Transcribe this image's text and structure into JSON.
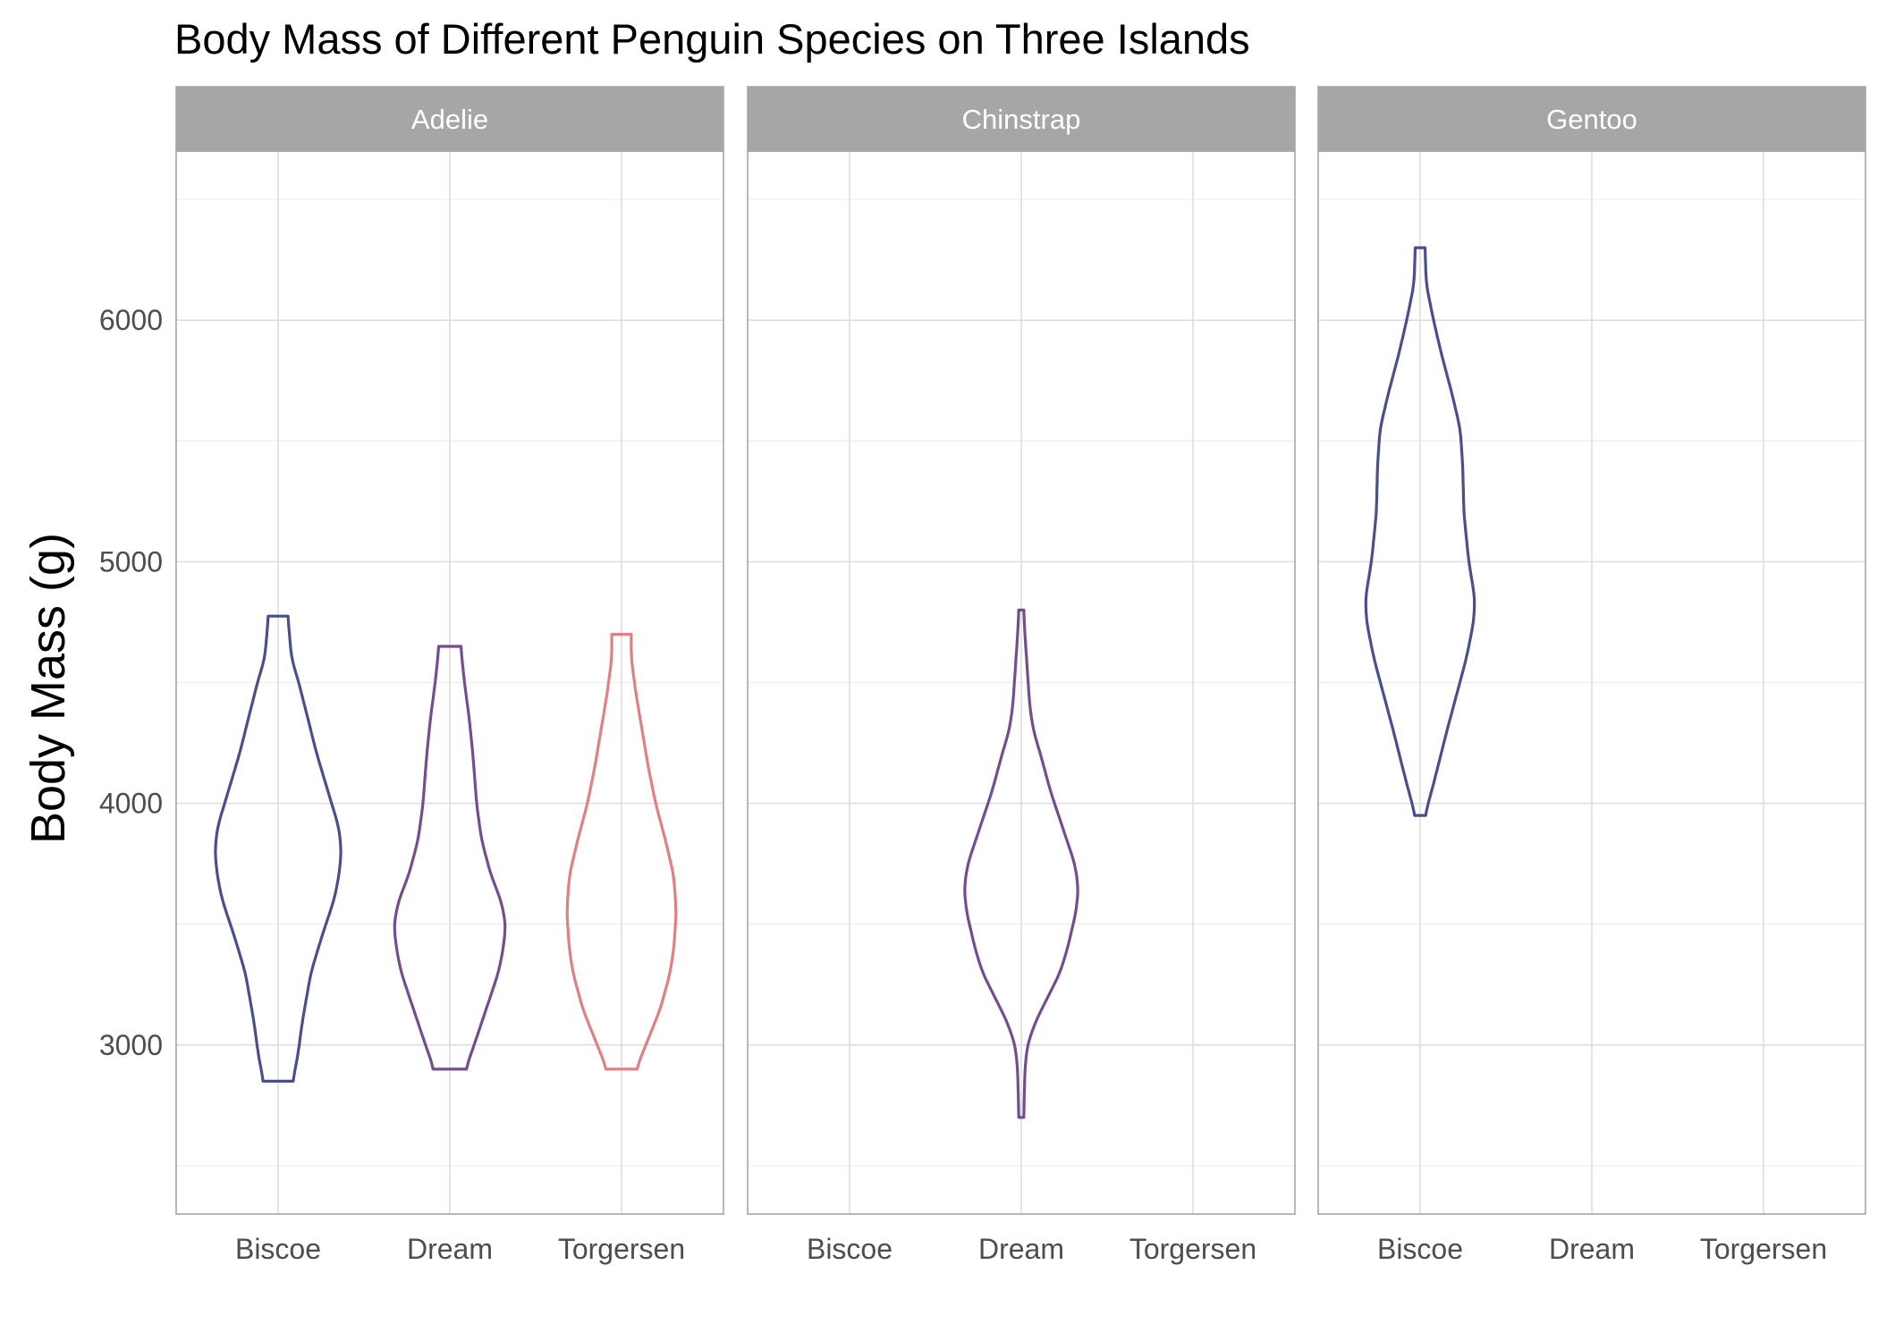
{
  "chart_data": {
    "type": "violin",
    "title": "Body Mass of Different Penguin Species on Three Islands",
    "ylabel": "Body Mass (g)",
    "xlabel": "",
    "ylim": [
      2300,
      6700
    ],
    "yticks": [
      3000,
      4000,
      5000,
      6000
    ],
    "yminor": [
      2500,
      3500,
      4500,
      5500,
      6500
    ],
    "grid": true,
    "legend": "none",
    "categories": [
      "Biscoe",
      "Dream",
      "Torgersen"
    ],
    "facets": [
      {
        "label": "Adelie",
        "violins": [
          {
            "island": "Biscoe",
            "color": "#4a4f8a",
            "min": 2850,
            "max": 4775,
            "profile": [
              [
                2850,
                0.12
              ],
              [
                2950,
                0.16
              ],
              [
                3100,
                0.2
              ],
              [
                3300,
                0.27
              ],
              [
                3450,
                0.36
              ],
              [
                3600,
                0.46
              ],
              [
                3700,
                0.5
              ],
              [
                3800,
                0.52
              ],
              [
                3900,
                0.5
              ],
              [
                4000,
                0.44
              ],
              [
                4200,
                0.32
              ],
              [
                4400,
                0.22
              ],
              [
                4500,
                0.17
              ],
              [
                4600,
                0.11
              ],
              [
                4775,
                0.08
              ]
            ]
          },
          {
            "island": "Dream",
            "color": "#744d8d",
            "min": 2900,
            "max": 4650,
            "profile": [
              [
                2900,
                0.13
              ],
              [
                3000,
                0.2
              ],
              [
                3150,
                0.3
              ],
              [
                3300,
                0.4
              ],
              [
                3400,
                0.44
              ],
              [
                3500,
                0.46
              ],
              [
                3600,
                0.42
              ],
              [
                3700,
                0.34
              ],
              [
                3850,
                0.26
              ],
              [
                4000,
                0.22
              ],
              [
                4200,
                0.19
              ],
              [
                4350,
                0.16
              ],
              [
                4500,
                0.12
              ],
              [
                4650,
                0.09
              ]
            ]
          },
          {
            "island": "Torgersen",
            "color": "#de8084",
            "min": 2900,
            "max": 4700,
            "profile": [
              [
                2900,
                0.12
              ],
              [
                3000,
                0.2
              ],
              [
                3150,
                0.32
              ],
              [
                3300,
                0.4
              ],
              [
                3400,
                0.43
              ],
              [
                3550,
                0.45
              ],
              [
                3700,
                0.43
              ],
              [
                3850,
                0.36
              ],
              [
                4000,
                0.28
              ],
              [
                4150,
                0.22
              ],
              [
                4300,
                0.17
              ],
              [
                4450,
                0.12
              ],
              [
                4600,
                0.08
              ],
              [
                4700,
                0.08
              ]
            ]
          }
        ]
      },
      {
        "label": "Chinstrap",
        "violins": [
          {
            "island": "Dream",
            "color": "#744d8d",
            "min": 2700,
            "max": 4800,
            "profile": [
              [
                2700,
                0.02
              ],
              [
                2900,
                0.03
              ],
              [
                3000,
                0.05
              ],
              [
                3100,
                0.12
              ],
              [
                3200,
                0.22
              ],
              [
                3300,
                0.32
              ],
              [
                3400,
                0.38
              ],
              [
                3550,
                0.45
              ],
              [
                3650,
                0.47
              ],
              [
                3750,
                0.44
              ],
              [
                3900,
                0.34
              ],
              [
                4050,
                0.24
              ],
              [
                4200,
                0.16
              ],
              [
                4300,
                0.1
              ],
              [
                4400,
                0.07
              ],
              [
                4550,
                0.05
              ],
              [
                4700,
                0.03
              ],
              [
                4800,
                0.02
              ]
            ]
          }
        ]
      },
      {
        "label": "Gentoo",
        "violins": [
          {
            "island": "Biscoe",
            "color": "#4a4f8a",
            "min": 3950,
            "max": 6300,
            "profile": [
              [
                3950,
                0.04
              ],
              [
                4100,
                0.12
              ],
              [
                4300,
                0.22
              ],
              [
                4450,
                0.3
              ],
              [
                4600,
                0.38
              ],
              [
                4750,
                0.44
              ],
              [
                4850,
                0.45
              ],
              [
                5000,
                0.4
              ],
              [
                5200,
                0.36
              ],
              [
                5400,
                0.35
              ],
              [
                5550,
                0.33
              ],
              [
                5700,
                0.26
              ],
              [
                5850,
                0.18
              ],
              [
                6000,
                0.11
              ],
              [
                6150,
                0.05
              ],
              [
                6300,
                0.04
              ]
            ]
          }
        ]
      }
    ]
  }
}
